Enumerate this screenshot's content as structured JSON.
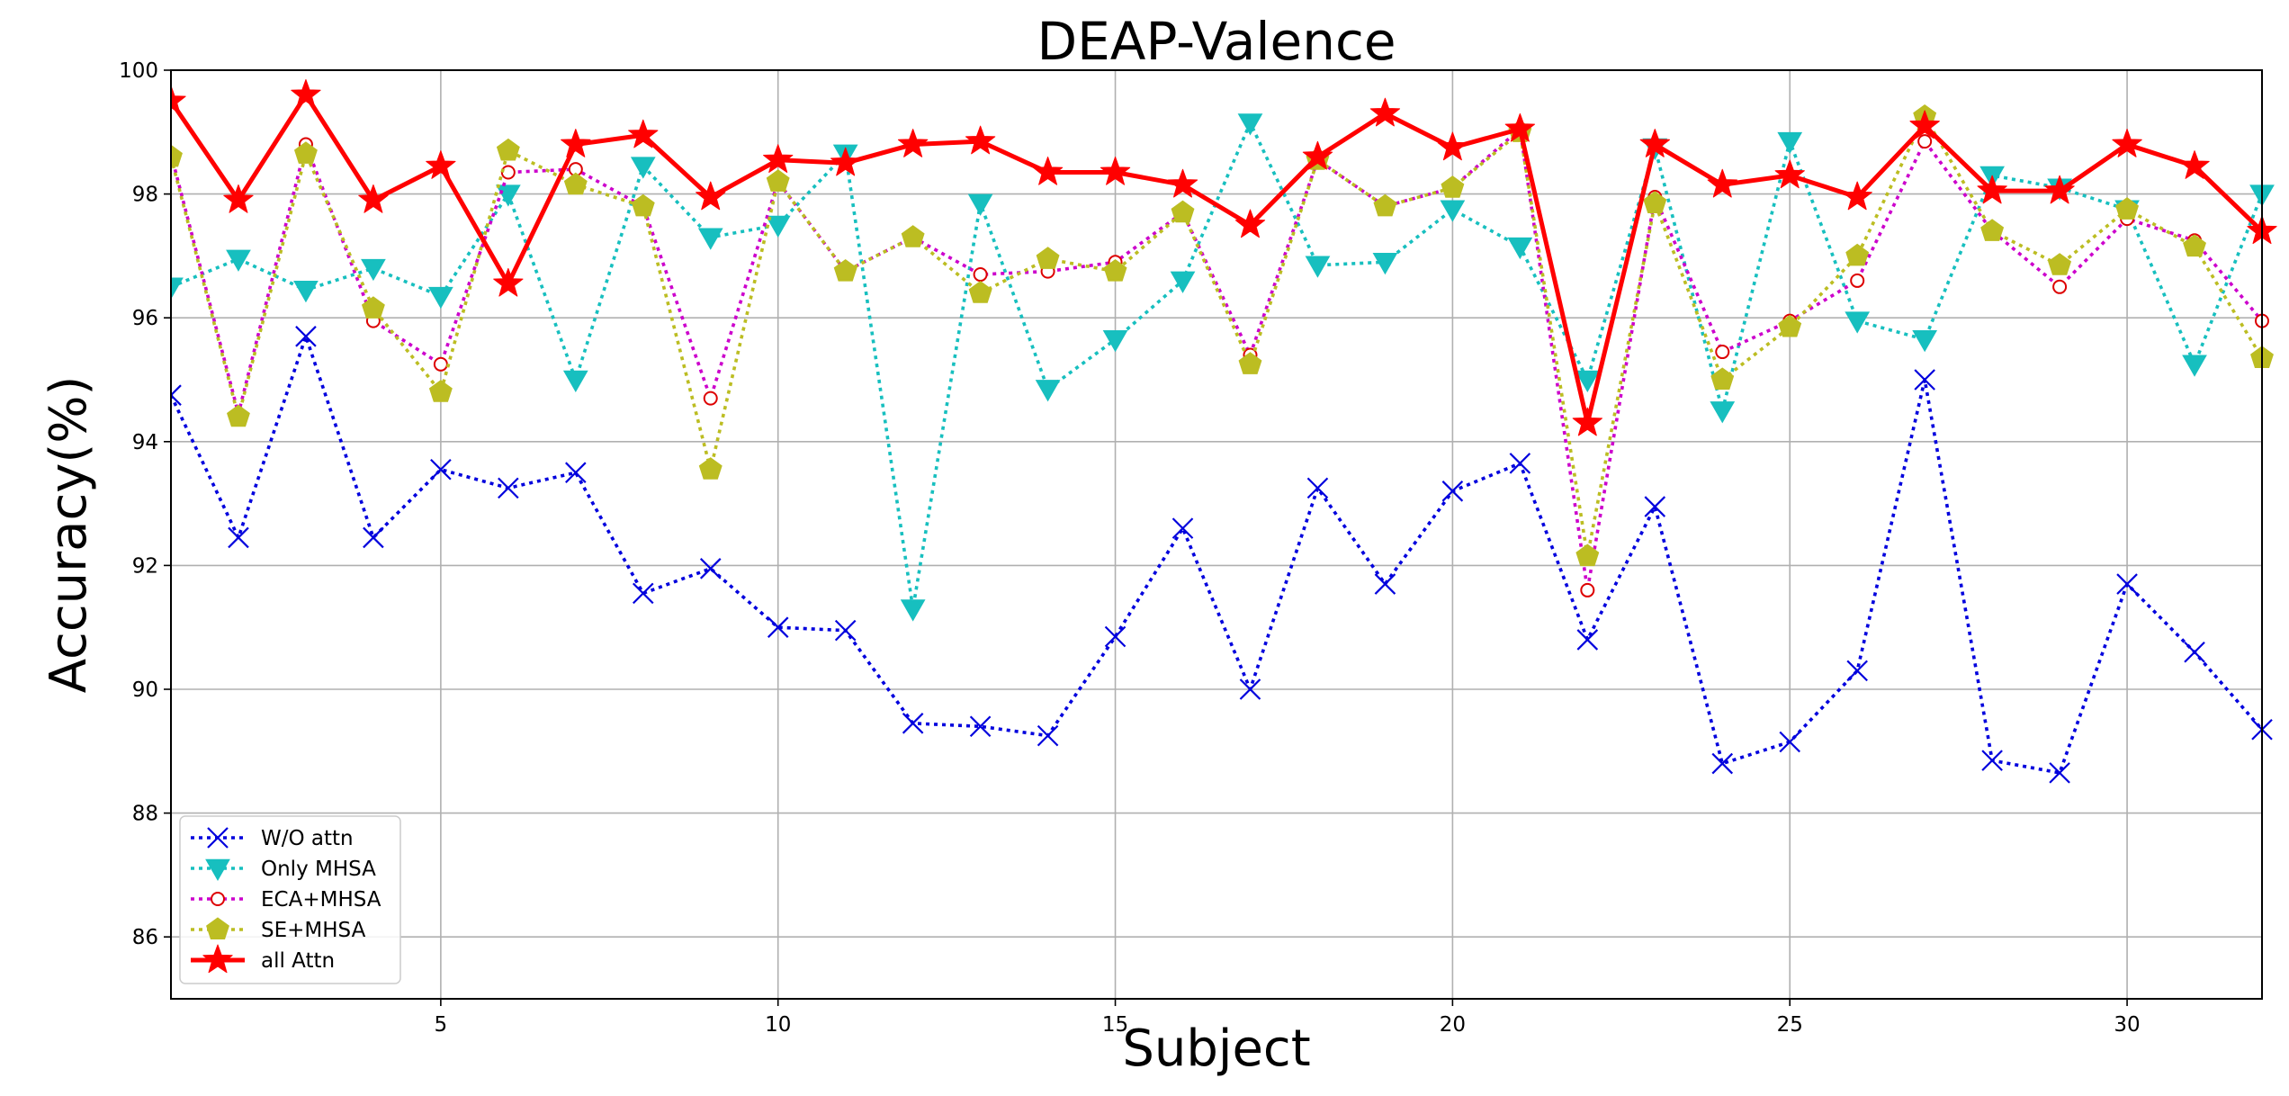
{
  "chart_data": {
    "type": "line",
    "title": "DEAP-Valence",
    "xlabel": "Subject",
    "ylabel": "Accuracy(%)",
    "xlim": [
      1,
      32
    ],
    "ylim": [
      85,
      100
    ],
    "grid": true,
    "legend_position": "lower-left",
    "x": [
      1,
      2,
      3,
      4,
      5,
      6,
      7,
      8,
      9,
      10,
      11,
      12,
      13,
      14,
      15,
      16,
      17,
      18,
      19,
      20,
      21,
      22,
      23,
      24,
      25,
      26,
      27,
      28,
      29,
      30,
      31,
      32
    ],
    "x_ticks": [
      5,
      10,
      15,
      20,
      25,
      30
    ],
    "y_ticks": [
      86,
      88,
      90,
      92,
      94,
      96,
      98,
      100
    ],
    "series": [
      {
        "name": "W/O attn",
        "color": "#0000dd",
        "line_style": "dotted",
        "marker": "x-icon",
        "values": [
          94.75,
          92.45,
          95.7,
          92.45,
          93.55,
          93.25,
          93.5,
          91.55,
          91.95,
          91.0,
          90.95,
          89.45,
          89.4,
          89.25,
          90.85,
          92.6,
          90.0,
          93.25,
          91.7,
          93.2,
          93.65,
          90.8,
          92.95,
          88.8,
          89.15,
          90.3,
          95.0,
          88.85,
          88.65,
          91.7,
          90.6,
          89.35
        ]
      },
      {
        "name": "Only MHSA",
        "color": "#17bfbf",
        "line_style": "dotted",
        "marker": "triangle-down-icon",
        "values": [
          96.5,
          96.95,
          96.45,
          96.8,
          96.35,
          98.0,
          95.0,
          98.45,
          97.3,
          97.5,
          98.65,
          91.3,
          97.85,
          94.85,
          95.65,
          96.6,
          99.15,
          96.85,
          96.9,
          97.75,
          97.15,
          95.0,
          98.75,
          94.5,
          98.85,
          95.95,
          95.65,
          98.3,
          98.1,
          97.75,
          95.25,
          98.0
        ]
      },
      {
        "name": "ECA+MHSA",
        "color": "#cc00cc",
        "line_style": "dotted",
        "marker": "circle-icon",
        "values": [
          98.65,
          94.45,
          98.8,
          95.95,
          95.25,
          98.35,
          98.4,
          97.8,
          94.7,
          98.2,
          96.75,
          97.3,
          96.7,
          96.75,
          96.9,
          97.7,
          95.4,
          98.55,
          97.8,
          98.1,
          99.05,
          91.6,
          97.95,
          95.45,
          95.95,
          96.6,
          98.85,
          97.4,
          96.5,
          97.6,
          97.25,
          95.95
        ]
      },
      {
        "name": "SE+MHSA",
        "color": "#bcbd22",
        "line_style": "dotted",
        "marker": "pentagon-icon",
        "values": [
          98.6,
          94.4,
          98.65,
          96.15,
          94.8,
          98.7,
          98.15,
          97.8,
          93.55,
          98.2,
          96.75,
          97.3,
          96.4,
          96.95,
          96.75,
          97.7,
          95.25,
          98.55,
          97.8,
          98.1,
          99.0,
          92.15,
          97.85,
          95.0,
          95.85,
          97.0,
          99.25,
          97.4,
          96.85,
          97.75,
          97.15,
          95.35
        ]
      },
      {
        "name": "all Attn",
        "color": "#ff0000",
        "line_style": "solid",
        "marker": "star-icon",
        "values": [
          99.5,
          97.9,
          99.6,
          97.9,
          98.45,
          96.55,
          98.8,
          98.95,
          97.95,
          98.55,
          98.5,
          98.8,
          98.85,
          98.35,
          98.35,
          98.15,
          97.5,
          98.6,
          99.3,
          98.75,
          99.05,
          94.3,
          98.8,
          98.15,
          98.3,
          97.95,
          99.1,
          98.05,
          98.05,
          98.8,
          98.45,
          97.4
        ]
      }
    ]
  }
}
